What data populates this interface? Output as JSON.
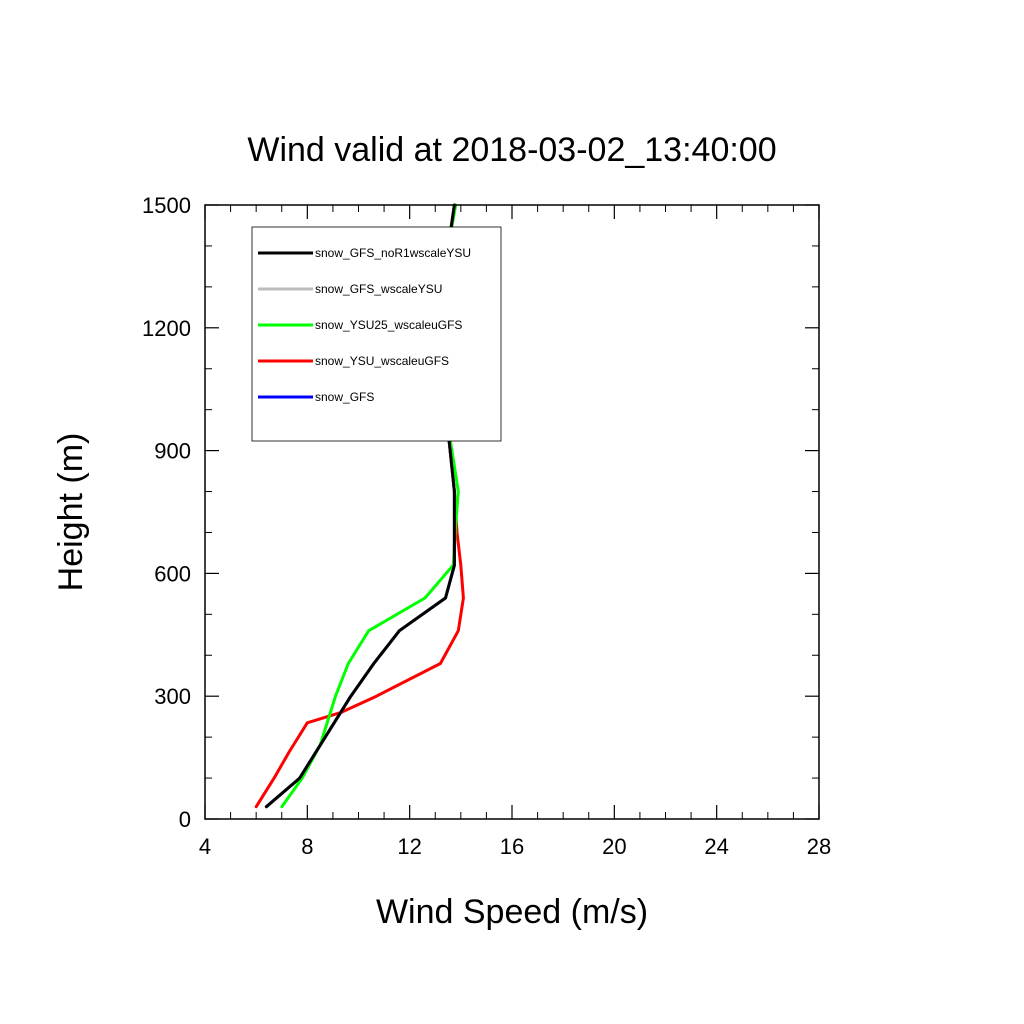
{
  "chart_data": {
    "type": "line",
    "title": "Wind valid at 2018-03-02_13:40:00",
    "xlabel": "Wind Speed (m/s)",
    "ylabel": "Height (m)",
    "xlim": [
      4,
      28
    ],
    "ylim": [
      0,
      1500
    ],
    "x_ticks": [
      4,
      8,
      12,
      16,
      20,
      24,
      28
    ],
    "y_ticks": [
      0,
      300,
      600,
      900,
      1200,
      1500
    ],
    "legend_position": "top-left",
    "series": [
      {
        "name": "snow_GFS_noR1wscaleYSU",
        "color": "#000000",
        "points": [
          [
            13.75,
            1500
          ],
          [
            13.4,
            1350
          ],
          [
            13.1,
            1250
          ],
          [
            13.1,
            1150
          ],
          [
            13.3,
            1030
          ],
          [
            13.55,
            920
          ],
          [
            13.75,
            800
          ],
          [
            13.75,
            620
          ],
          [
            13.4,
            540
          ],
          [
            11.6,
            460
          ],
          [
            10.6,
            380
          ],
          [
            9.7,
            300
          ],
          [
            8.6,
            190
          ],
          [
            7.7,
            100
          ],
          [
            6.4,
            30
          ]
        ]
      },
      {
        "name": "snow_GFS_wscaleYSU",
        "color": "#bdbdbd",
        "points": [
          [
            13.75,
            1500
          ],
          [
            13.4,
            1350
          ],
          [
            13.1,
            1250
          ],
          [
            13.1,
            1150
          ],
          [
            13.3,
            1030
          ],
          [
            13.55,
            920
          ],
          [
            13.75,
            800
          ],
          [
            13.75,
            620
          ],
          [
            13.4,
            540
          ],
          [
            11.6,
            460
          ],
          [
            10.6,
            380
          ],
          [
            9.7,
            300
          ],
          [
            8.6,
            190
          ],
          [
            7.7,
            100
          ],
          [
            6.4,
            30
          ]
        ]
      },
      {
        "name": "snow_YSU25_wscaleuGFS",
        "color": "#00ff00",
        "points": [
          [
            13.8,
            1500
          ],
          [
            13.4,
            1360
          ],
          [
            13.0,
            1250
          ],
          [
            13.0,
            1150
          ],
          [
            13.3,
            1030
          ],
          [
            13.6,
            920
          ],
          [
            13.9,
            800
          ],
          [
            13.8,
            720
          ],
          [
            13.7,
            620
          ],
          [
            12.6,
            540
          ],
          [
            10.4,
            460
          ],
          [
            9.6,
            380
          ],
          [
            9.1,
            300
          ],
          [
            8.5,
            180
          ],
          [
            7.8,
            100
          ],
          [
            7.0,
            30
          ]
        ]
      },
      {
        "name": "snow_YSU_wscaleuGFS",
        "color": "#ff0000",
        "points": [
          [
            13.75,
            1500
          ],
          [
            13.4,
            1350
          ],
          [
            13.1,
            1250
          ],
          [
            13.1,
            1150
          ],
          [
            13.3,
            1030
          ],
          [
            13.55,
            920
          ],
          [
            13.75,
            800
          ],
          [
            13.85,
            700
          ],
          [
            14.0,
            620
          ],
          [
            14.1,
            540
          ],
          [
            13.9,
            460
          ],
          [
            13.2,
            380
          ],
          [
            10.7,
            300
          ],
          [
            9.3,
            260
          ],
          [
            8.0,
            235
          ],
          [
            7.3,
            165
          ],
          [
            6.7,
            100
          ],
          [
            6.0,
            30
          ]
        ]
      },
      {
        "name": "snow_GFS",
        "color": "#0000ff",
        "points": [
          [
            13.75,
            1500
          ],
          [
            13.4,
            1350
          ],
          [
            13.1,
            1250
          ],
          [
            13.1,
            1150
          ],
          [
            13.3,
            1030
          ],
          [
            13.55,
            920
          ],
          [
            13.75,
            800
          ],
          [
            13.75,
            620
          ],
          [
            13.4,
            540
          ],
          [
            11.6,
            460
          ],
          [
            10.6,
            380
          ],
          [
            9.7,
            300
          ],
          [
            8.6,
            190
          ],
          [
            7.7,
            100
          ],
          [
            6.4,
            30
          ]
        ]
      }
    ],
    "draw_order": [
      4,
      3,
      2,
      1,
      0
    ]
  }
}
